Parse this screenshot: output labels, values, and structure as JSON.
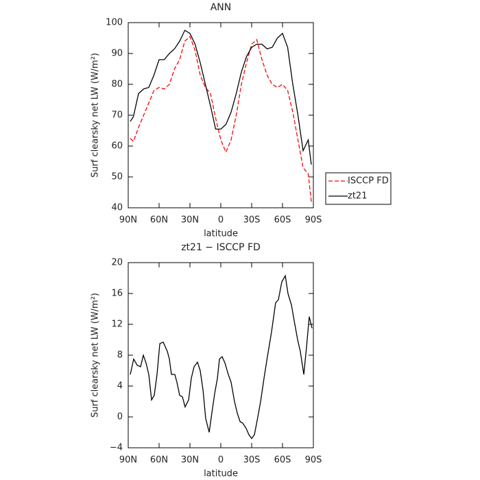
{
  "chart_data": [
    {
      "type": "line",
      "title": "ANN",
      "x_label": "latitude",
      "y_label": "Surf clearsky net LW (W/m²)",
      "x": [
        88,
        85,
        80,
        75,
        70,
        65,
        60,
        55,
        50,
        45,
        40,
        35,
        30,
        25,
        20,
        15,
        10,
        5,
        0,
        -5,
        -10,
        -15,
        -20,
        -25,
        -30,
        -35,
        -40,
        -45,
        -50,
        -55,
        -60,
        -65,
        -70,
        -75,
        -80,
        -85,
        -88
      ],
      "series": [
        {
          "name": "ISCCP FD",
          "color": "#ff0000",
          "dashed": true,
          "values": [
            62.5,
            61.5,
            66,
            70,
            74,
            78,
            79,
            78.5,
            80,
            85,
            88,
            94,
            95.5,
            91,
            83,
            79,
            77,
            69,
            62,
            58,
            62,
            70,
            80,
            87,
            93,
            94.5,
            88,
            83,
            80,
            79,
            80,
            78,
            71,
            62,
            53,
            51,
            42
          ]
        },
        {
          "name": "zt21",
          "color": "#000000",
          "dashed": false,
          "values": [
            68,
            69.5,
            77,
            78.5,
            79,
            83,
            88,
            88,
            90,
            91.5,
            94,
            97.5,
            96.5,
            93,
            87,
            80,
            73,
            65.5,
            65.5,
            67,
            71,
            77,
            84,
            89,
            92,
            93,
            93,
            91.5,
            92,
            95,
            96.5,
            92,
            80,
            70,
            58.5,
            62,
            54
          ]
        }
      ],
      "xlim": [
        90,
        -90
      ],
      "xticks": [
        {
          "value": 90,
          "label": "90N"
        },
        {
          "value": 60,
          "label": "60N"
        },
        {
          "value": 30,
          "label": "30N"
        },
        0,
        {
          "value": -30,
          "label": "30S"
        },
        {
          "value": -60,
          "label": "60S"
        },
        {
          "value": -90,
          "label": "90S"
        }
      ],
      "ylim": [
        40,
        100
      ],
      "yticks": [
        40,
        50,
        60,
        70,
        80,
        90,
        100
      ],
      "legend": "right"
    },
    {
      "type": "line",
      "title": "zt21 − ISCCP FD",
      "x_label": "latitude",
      "y_label": "Surf clearsky net LW (W/m²)",
      "x": [
        88,
        84.7,
        81.3,
        78,
        75.3,
        72.7,
        70,
        67.3,
        64.7,
        62,
        59.3,
        56,
        52,
        50,
        48,
        44.7,
        42.7,
        40,
        37.3,
        34.7,
        31.3,
        28.7,
        26,
        22.7,
        20,
        17.3,
        14.7,
        11.3,
        8.7,
        6,
        3.3,
        1.3,
        -1.3,
        -4,
        -7.3,
        -10,
        -13.3,
        -16,
        -18.7,
        -21.3,
        -24.7,
        -27.3,
        -30,
        -32.7,
        -36,
        -38.7,
        -42,
        -45.3,
        -49.3,
        -53.3,
        -56,
        -59.3,
        -62.7,
        -65.3,
        -68.7,
        -71.3,
        -74.7,
        -77.3,
        -80.7,
        -83.3,
        -86,
        -88.7
      ],
      "values": [
        5.5,
        7.5,
        6.7,
        6.5,
        8,
        7,
        5.5,
        2.2,
        2.8,
        5.5,
        9.5,
        9.7,
        8.5,
        7.5,
        5.5,
        5.5,
        4.5,
        2.8,
        2.6,
        1.3,
        2.2,
        5,
        6.5,
        7.1,
        6,
        3.5,
        -0.2,
        -2,
        0.5,
        3,
        5,
        7.5,
        7.8,
        7,
        5.5,
        4.5,
        2,
        0.5,
        -0.6,
        -0.8,
        -1.5,
        -2.3,
        -2.8,
        -2.3,
        0,
        2,
        5,
        7.8,
        11,
        14.8,
        15.2,
        17.5,
        18.3,
        16,
        14.5,
        12.5,
        10,
        8.5,
        5.5,
        9,
        13,
        11.5
      ],
      "color": "#000000",
      "xlim": [
        90,
        -90
      ],
      "xticks": [
        {
          "value": 90,
          "label": "90N"
        },
        {
          "value": 60,
          "label": "60N"
        },
        {
          "value": 30,
          "label": "30N"
        },
        0,
        {
          "value": -30,
          "label": "30S"
        },
        {
          "value": -60,
          "label": "60S"
        },
        {
          "value": -90,
          "label": "90S"
        }
      ],
      "ylim": [
        -4,
        20
      ],
      "yticks": [
        {
          "value": -4,
          "label": "−4"
        },
        0,
        4,
        8,
        12,
        16,
        20
      ]
    }
  ]
}
